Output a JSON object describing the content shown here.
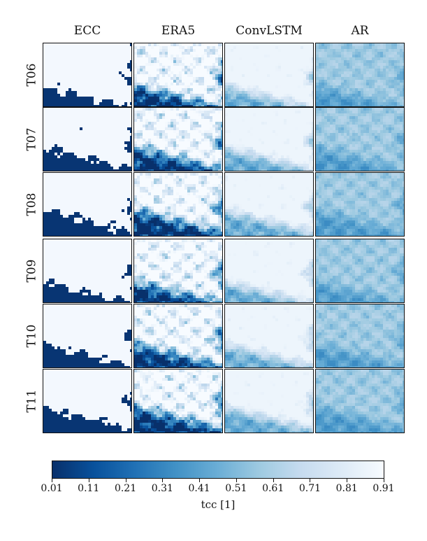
{
  "chart_data": {
    "type": "heatmap",
    "columns": [
      "ECC",
      "ERA5",
      "ConvLSTM",
      "AR"
    ],
    "rows": [
      "T06",
      "T07",
      "T08",
      "T09",
      "T10",
      "T11"
    ],
    "colorbar": {
      "label": "tcc [1]",
      "range": [
        0.01,
        0.91
      ],
      "ticks": [
        "0.01",
        "0.11",
        "0.21",
        "0.31",
        "0.41",
        "0.51",
        "0.61",
        "0.71",
        "0.81",
        "0.91"
      ],
      "colormap": [
        "#08306b",
        "#08519c",
        "#2171b5",
        "#4292c6",
        "#6baed6",
        "#9ecae1",
        "#c6dbef",
        "#deebf7",
        "#f7fbff"
      ]
    }
  }
}
